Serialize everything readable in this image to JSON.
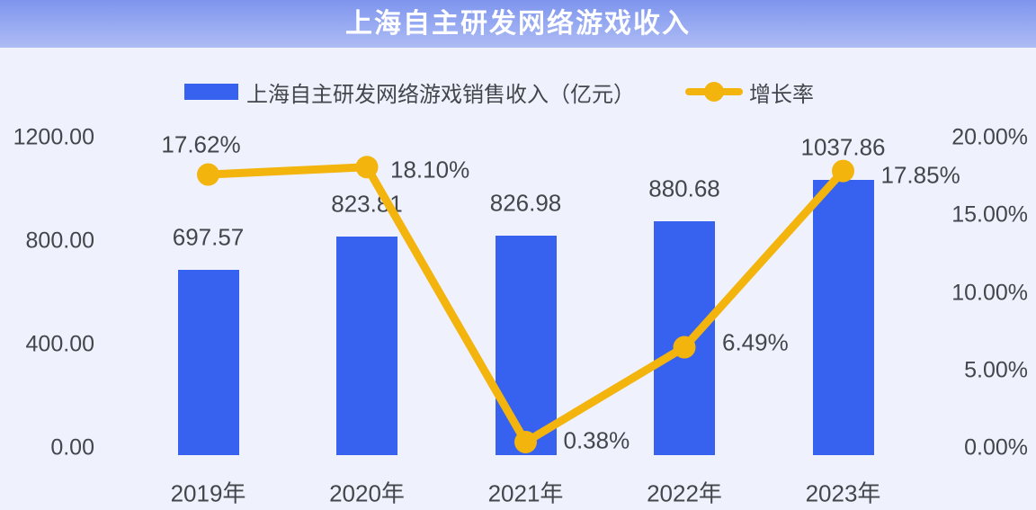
{
  "title": "上海自主研发网络游戏收入",
  "legend": {
    "bar_label": "上海自主研发网络游戏销售收入（亿元）",
    "line_label": "增长率"
  },
  "colors": {
    "background": "#eff2fc",
    "bar": "#3662ef",
    "line": "#f2b40d",
    "text": "#43464b",
    "title_text": "#ffffff",
    "header_top": "#7e95ee",
    "header_bottom": "#aebcf4"
  },
  "chart_data": {
    "type": "bar",
    "subtype": "bar-line-combo",
    "title": "上海自主研发网络游戏收入",
    "categories": [
      "2019年",
      "2020年",
      "2021年",
      "2022年",
      "2023年"
    ],
    "series": [
      {
        "name": "上海自主研发网络游戏销售收入（亿元）",
        "type": "bar",
        "axis": "left",
        "values": [
          697.57,
          823.81,
          826.98,
          880.68,
          1037.86
        ],
        "labels": [
          "697.57",
          "823.81",
          "826.98",
          "880.68",
          "1037.86"
        ]
      },
      {
        "name": "增长率",
        "type": "line",
        "axis": "right",
        "values": [
          17.62,
          18.1,
          0.38,
          6.49,
          17.85
        ],
        "labels": [
          "17.62%",
          "18.10%",
          "0.38%",
          "6.49%",
          "17.85%"
        ]
      }
    ],
    "left_axis": {
      "min": 0,
      "max": 1200,
      "ticks": [
        {
          "label": "0.00",
          "value": 0
        },
        {
          "label": "400.00",
          "value": 400
        },
        {
          "label": "800.00",
          "value": 800
        },
        {
          "label": "1200.00",
          "value": 1200
        }
      ]
    },
    "right_axis": {
      "min": 0,
      "max": 20,
      "ticks": [
        {
          "label": "0.00%",
          "value": 0
        },
        {
          "label": "5.00%",
          "value": 5
        },
        {
          "label": "10.00%",
          "value": 10
        },
        {
          "label": "15.00%",
          "value": 15
        },
        {
          "label": "20.00%",
          "value": 20
        }
      ]
    },
    "grid": false,
    "legend_position": "top"
  }
}
